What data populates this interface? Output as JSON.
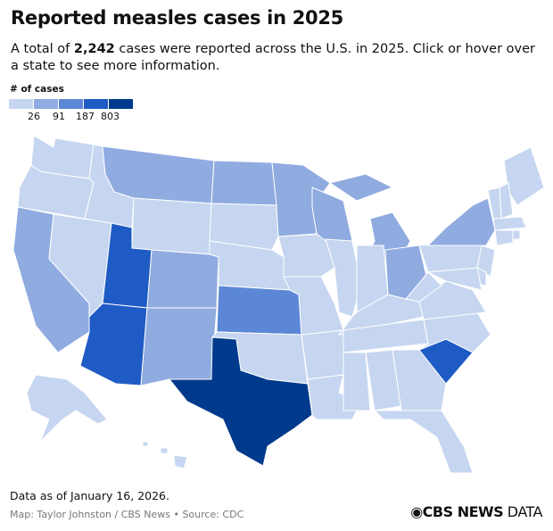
{
  "title": "Reported measles cases in 2025",
  "subtitle": {
    "before": "A total of ",
    "total": "2,242",
    "after": " cases were reported across the U.S. in 2025. Click or hover over a state to see more information."
  },
  "legend": {
    "title": "# of cases",
    "colors": [
      "#c6d6f0",
      "#8fabe0",
      "#5c87d6",
      "#1f5bc4",
      "#003a8c"
    ],
    "breaks": [
      "26",
      "91",
      "187",
      "803"
    ]
  },
  "chart_data": {
    "type": "choropleth",
    "bins_by_state": {
      "WA": 0,
      "OR": 0,
      "ID": 0,
      "MT": 1,
      "WY": 0,
      "ND": 1,
      "SD": 0,
      "NE": 0,
      "CA": 1,
      "NV": 0,
      "UT": 3,
      "AZ": 3,
      "CO": 1,
      "NM": 1,
      "KS": 2,
      "OK": 0,
      "TX": 4,
      "MN": 1,
      "IA": 0,
      "MO": 0,
      "AR": 0,
      "LA": 0,
      "WI": 1,
      "IL": 0,
      "MI": 1,
      "IN": 0,
      "OH": 1,
      "KY": 0,
      "TN": 0,
      "MS": 0,
      "AL": 0,
      "GA": 0,
      "FL": 0,
      "SC": 3,
      "NC": 0,
      "VA": 0,
      "WV": 0,
      "PA": 0,
      "NY": 1,
      "ME": 0,
      "NH": 0,
      "VT": 0,
      "MA": 0,
      "CT": 0,
      "RI": 0,
      "NJ": 0,
      "DE": 0,
      "MD": 0,
      "AK": 0,
      "HI": 0
    }
  },
  "footer": {
    "as_of": "Data as of January 16, 2026.",
    "credit": "Map: Taylor Johnston / CBS News • Source: CDC",
    "logo_bold": "CBS NEWS",
    "logo_light": " DATA"
  }
}
